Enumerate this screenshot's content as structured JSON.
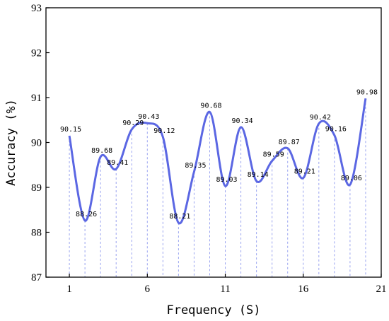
{
  "chart_data": {
    "type": "line",
    "title": "",
    "xlabel": "Frequency (S)",
    "ylabel": "Accuracy (%)",
    "xlim": [
      -0.5,
      21
    ],
    "ylim": [
      87,
      93
    ],
    "xticks": [
      1,
      6,
      11,
      16,
      21
    ],
    "yticks": [
      87,
      88,
      89,
      90,
      91,
      92,
      93
    ],
    "grid": false,
    "line_color": "#5b67e3",
    "drop_line_color": "#9aa4f0",
    "series": [
      {
        "x": [
          1,
          2,
          3,
          4,
          5,
          6,
          7,
          8,
          9,
          10,
          11,
          12,
          13,
          14,
          15,
          16,
          17,
          18,
          19,
          20
        ],
        "values": [
          90.15,
          88.26,
          89.68,
          89.41,
          90.29,
          90.43,
          90.12,
          88.21,
          89.35,
          90.68,
          89.03,
          90.34,
          89.14,
          89.59,
          89.87,
          89.21,
          90.42,
          90.16,
          89.06,
          90.98
        ],
        "labels": [
          "90.15",
          "88.26",
          "89.68",
          "89.41",
          "90.29",
          "90.43",
          "90.12",
          "88.21",
          "89.35",
          "90.68",
          "89.03",
          "90.34",
          "89.14",
          "89.59",
          "89.87",
          "89.21",
          "90.42",
          "90.16",
          "89.06",
          "90.98"
        ]
      }
    ]
  }
}
